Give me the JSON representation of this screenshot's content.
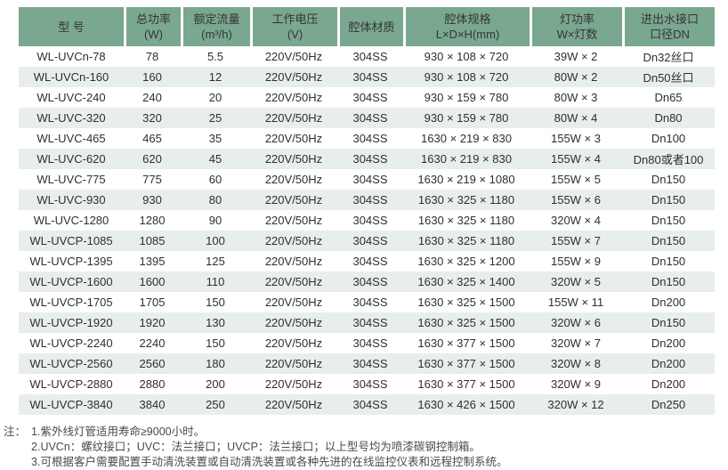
{
  "table": {
    "columns": [
      {
        "line1": "型 号",
        "line2": ""
      },
      {
        "line1": "总功率",
        "line2": "(W)"
      },
      {
        "line1": "额定流量",
        "line2": "(m³/h)"
      },
      {
        "line1": "工作电压",
        "line2": "(V)"
      },
      {
        "line1": "腔体材质",
        "line2": ""
      },
      {
        "line1": "腔体规格",
        "line2": "L×D×H(mm)"
      },
      {
        "line1": "灯功率",
        "line2": "W×灯数"
      },
      {
        "line1": "进出水接口",
        "line2": "口径DN"
      }
    ],
    "rows": [
      [
        "WL-UVCn-78",
        "78",
        "5.5",
        "220V/50Hz",
        "304SS",
        "930 × 108 × 720",
        "39W × 2",
        "Dn32丝口"
      ],
      [
        "WL-UVCn-160",
        "160",
        "12",
        "220V/50Hz",
        "304SS",
        "930 × 108 × 720",
        "80W × 2",
        "Dn50丝口"
      ],
      [
        "WL-UVC-240",
        "240",
        "20",
        "220V/50Hz",
        "304SS",
        "930 × 159 × 780",
        "80W × 3",
        "Dn65"
      ],
      [
        "WL-UVC-320",
        "320",
        "25",
        "220V/50Hz",
        "304SS",
        "930 × 159 × 780",
        "80W × 4",
        "Dn80"
      ],
      [
        "WL-UVC-465",
        "465",
        "35",
        "220V/50Hz",
        "304SS",
        "1630 × 219 × 830",
        "155W × 3",
        "Dn100"
      ],
      [
        "WL-UVC-620",
        "620",
        "45",
        "220V/50Hz",
        "304SS",
        "1630 × 219 × 830",
        "155W × 4",
        "Dn80或者100"
      ],
      [
        "WL-UVC-775",
        "775",
        "60",
        "220V/50Hz",
        "304SS",
        "1630 × 219 × 1080",
        "155W × 5",
        "Dn150"
      ],
      [
        "WL-UVC-930",
        "930",
        "80",
        "220V/50Hz",
        "304SS",
        "1630 × 325 × 1180",
        "155W × 6",
        "Dn150"
      ],
      [
        "WL-UVC-1280",
        "1280",
        "90",
        "220V/50Hz",
        "304SS",
        "1630 × 325 × 1180",
        "320W × 4",
        "Dn150"
      ],
      [
        "WL-UVCP-1085",
        "1085",
        "100",
        "220V/50Hz",
        "304SS",
        "1630 × 325 × 1180",
        "155W × 7",
        "Dn150"
      ],
      [
        "WL-UVCP-1395",
        "1395",
        "125",
        "220V/50Hz",
        "304SS",
        "1630 × 325 × 1200",
        "155W × 9",
        "Dn150"
      ],
      [
        "WL-UVCP-1600",
        "1600",
        "110",
        "220V/50Hz",
        "304SS",
        "1630 × 325 × 1400",
        "320W × 5",
        "Dn150"
      ],
      [
        "WL-UVCP-1705",
        "1705",
        "150",
        "220V/50Hz",
        "304SS",
        "1630 × 325 × 1500",
        "155W × 11",
        "Dn200"
      ],
      [
        "WL-UVCP-1920",
        "1920",
        "130",
        "220V/50Hz",
        "304SS",
        "1630 × 325 × 1500",
        "320W × 6",
        "Dn150"
      ],
      [
        "WL-UVCP-2240",
        "2240",
        "150",
        "220V/50Hz",
        "304SS",
        "1630 × 377 × 1500",
        "320W × 7",
        "Dn200"
      ],
      [
        "WL-UVCP-2560",
        "2560",
        "180",
        "220V/50Hz",
        "304SS",
        "1630 × 377 × 1500",
        "320W × 8",
        "Dn200"
      ],
      [
        "WL-UVCP-2880",
        "2880",
        "200",
        "220V/50Hz",
        "304SS",
        "1630 × 377 × 1500",
        "320W × 9",
        "Dn200"
      ],
      [
        "WL-UVCP-3840",
        "3840",
        "250",
        "220V/50Hz",
        "304SS",
        "1630 × 426 × 1500",
        "320W × 12",
        "Dn250"
      ]
    ]
  },
  "notes": {
    "prefix": "注：",
    "items": [
      "1.紫外线灯管适用寿命≥9000小时。",
      "2.UVCn：螺纹接口；UVC：法兰接口；UVCP：法兰接口；以上型号均为喷漆碳钢控制箱。",
      "3.可根据客户需要配置手动清洗装置或自动清洗装置或各种先进的在线监控仪表和远程控制系统。"
    ]
  },
  "colors": {
    "header_bg": "#7aa78f",
    "row_alt_bg": "#e8eeeb",
    "body_text": "#2f2f2f"
  }
}
